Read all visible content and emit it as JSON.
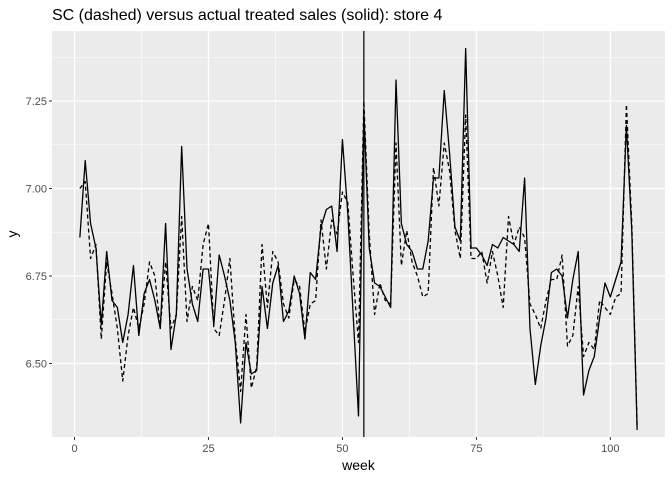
{
  "chart_data": {
    "type": "line",
    "title": "SC (dashed) versus actual treated sales (solid): store 4",
    "xlabel": "week",
    "ylabel": "y",
    "xlim": [
      -4.2,
      110.2
    ],
    "ylim": [
      6.29,
      7.45
    ],
    "x_ticks": [
      0,
      25,
      50,
      75,
      100
    ],
    "x_tick_labels": [
      "0",
      "25",
      "50",
      "75",
      "100"
    ],
    "y_ticks": [
      6.5,
      6.75,
      7.0,
      7.25
    ],
    "y_tick_labels": [
      "6.50",
      "6.75",
      "7.00",
      "7.25"
    ],
    "grid": true,
    "background": "#ebebeb",
    "grid_color": "#ffffff",
    "line_color": "#000000",
    "vline_x": 54,
    "x": [
      1,
      2,
      3,
      4,
      5,
      6,
      7,
      8,
      9,
      10,
      11,
      12,
      13,
      14,
      15,
      16,
      17,
      18,
      19,
      20,
      21,
      22,
      23,
      24,
      25,
      26,
      27,
      28,
      29,
      30,
      31,
      32,
      33,
      34,
      35,
      36,
      37,
      38,
      39,
      40,
      41,
      42,
      43,
      44,
      45,
      46,
      47,
      48,
      49,
      50,
      51,
      52,
      53,
      54,
      55,
      56,
      57,
      58,
      59,
      60,
      61,
      62,
      63,
      64,
      65,
      66,
      67,
      68,
      69,
      70,
      71,
      72,
      73,
      74,
      75,
      76,
      77,
      78,
      79,
      80,
      81,
      82,
      83,
      84,
      85,
      86,
      87,
      88,
      89,
      90,
      91,
      92,
      93,
      94,
      95,
      96,
      97,
      98,
      99,
      100,
      101,
      102,
      103,
      104,
      105
    ],
    "series": [
      {
        "name": "actual treated sales",
        "style": "solid",
        "values": [
          6.86,
          7.08,
          6.9,
          6.83,
          6.61,
          6.82,
          6.68,
          6.66,
          6.56,
          6.64,
          6.78,
          6.58,
          6.7,
          6.74,
          6.68,
          6.6,
          6.9,
          6.54,
          6.64,
          7.12,
          6.77,
          6.67,
          6.62,
          6.77,
          6.77,
          6.61,
          6.81,
          6.75,
          6.68,
          6.56,
          6.33,
          6.56,
          6.47,
          6.48,
          6.72,
          6.6,
          6.73,
          6.78,
          6.62,
          6.65,
          6.75,
          6.7,
          6.57,
          6.76,
          6.74,
          6.89,
          6.94,
          6.95,
          6.82,
          7.14,
          6.93,
          6.64,
          6.35,
          7.22,
          6.83,
          6.73,
          6.72,
          6.69,
          6.66,
          7.31,
          6.9,
          6.84,
          6.82,
          6.77,
          6.77,
          6.85,
          7.03,
          7.03,
          7.28,
          7.1,
          6.89,
          6.85,
          7.4,
          6.83,
          6.83,
          6.81,
          6.78,
          6.84,
          6.83,
          6.86,
          6.85,
          6.84,
          6.82,
          7.03,
          6.6,
          6.44,
          6.55,
          6.63,
          6.76,
          6.77,
          6.75,
          6.63,
          6.74,
          6.82,
          6.41,
          6.48,
          6.52,
          6.63,
          6.73,
          6.69,
          6.74,
          6.79,
          7.18,
          6.88,
          6.31
        ]
      },
      {
        "name": "SC",
        "style": "dashed",
        "values": [
          7.0,
          7.02,
          6.8,
          6.84,
          6.57,
          6.79,
          6.7,
          6.6,
          6.45,
          6.58,
          6.66,
          6.6,
          6.67,
          6.79,
          6.75,
          6.6,
          6.79,
          6.6,
          6.64,
          6.92,
          6.62,
          6.72,
          6.68,
          6.84,
          6.9,
          6.6,
          6.58,
          6.68,
          6.8,
          6.57,
          6.42,
          6.64,
          6.43,
          6.49,
          6.84,
          6.66,
          6.82,
          6.79,
          6.67,
          6.63,
          6.74,
          6.72,
          6.59,
          6.67,
          6.68,
          6.91,
          6.77,
          6.91,
          6.87,
          6.99,
          6.96,
          6.75,
          6.56,
          7.25,
          6.87,
          6.64,
          6.73,
          6.68,
          6.67,
          7.13,
          6.78,
          6.88,
          6.79,
          6.75,
          6.69,
          6.7,
          7.06,
          6.95,
          7.13,
          7.05,
          6.88,
          6.8,
          7.21,
          6.8,
          6.8,
          6.82,
          6.73,
          6.82,
          6.75,
          6.66,
          6.92,
          6.84,
          6.89,
          6.86,
          6.67,
          6.64,
          6.6,
          6.68,
          6.74,
          6.74,
          6.81,
          6.55,
          6.58,
          6.72,
          6.52,
          6.56,
          6.54,
          6.68,
          6.66,
          6.64,
          6.69,
          6.7,
          7.24,
          6.9,
          6.32
        ]
      }
    ]
  }
}
